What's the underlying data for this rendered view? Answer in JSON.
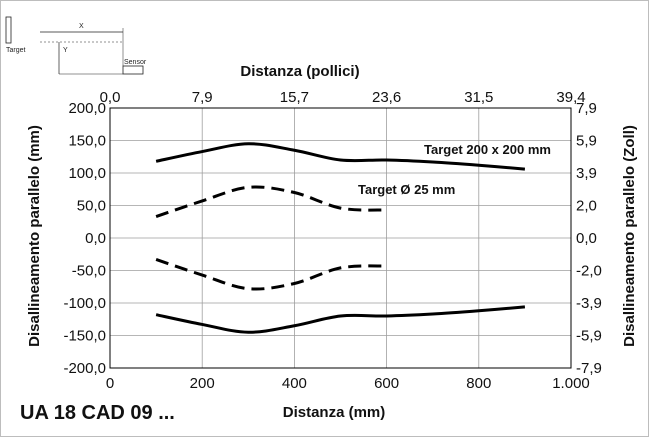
{
  "model_label": "UA 18 CAD 09 ...",
  "inset": {
    "x_label": "X",
    "y_label": "Y",
    "target_label": "Target",
    "sensor_label": "Sensor"
  },
  "chart_data": {
    "type": "line",
    "title": "",
    "xlabel": "Distanza (mm)",
    "ylabel": "Disallineamento parallelo  (mm)",
    "x2label": "Distanza (pollici)",
    "y2label": "Disallineamento parallelo  (Zoll)",
    "xlim": [
      0,
      1000
    ],
    "ylim": [
      -200,
      200
    ],
    "x_ticks": [
      0,
      200,
      400,
      600,
      800,
      1000
    ],
    "x_tick_labels": [
      "0",
      "200",
      "400",
      "600",
      "800",
      "1.000"
    ],
    "y_ticks": [
      -200,
      -150,
      -100,
      -50,
      0,
      50,
      100,
      150,
      200
    ],
    "y_tick_labels": [
      "-200,0",
      "-150,0",
      "-100,0",
      "-50,0",
      "0,0",
      "50,0",
      "100,0",
      "150,0",
      "200,0"
    ],
    "x2_tick_labels": [
      "0,0",
      "7,9",
      "15,7",
      "23,6",
      "31,5",
      "39,4"
    ],
    "y2_tick_labels": [
      "-7,9",
      "-5,9",
      "-3,9",
      "-2,0",
      "0,0",
      "2,0",
      "3,9",
      "5,9",
      "7,9"
    ],
    "grid": true,
    "series": [
      {
        "name": "Target 200 x 200 mm",
        "style": "solid",
        "color": "#000000",
        "x": [
          100,
          200,
          300,
          400,
          500,
          600,
          700,
          800,
          900
        ],
        "y": [
          118,
          133,
          145,
          135,
          120,
          120,
          117,
          112,
          106
        ]
      },
      {
        "name": "",
        "style": "solid",
        "color": "#000000",
        "x": [
          100,
          200,
          300,
          400,
          500,
          600,
          700,
          800,
          900
        ],
        "y": [
          -118,
          -133,
          -145,
          -135,
          -120,
          -120,
          -117,
          -112,
          -106
        ]
      },
      {
        "name": "Target Ø 25 mm",
        "style": "dashed",
        "color": "#000000",
        "x": [
          100,
          200,
          300,
          400,
          500,
          600
        ],
        "y": [
          33,
          57,
          78,
          70,
          46,
          43
        ]
      },
      {
        "name": "",
        "style": "dashed",
        "color": "#000000",
        "x": [
          100,
          200,
          300,
          400,
          500,
          600
        ],
        "y": [
          -33,
          -57,
          -78,
          -70,
          -46,
          -43
        ]
      }
    ]
  }
}
